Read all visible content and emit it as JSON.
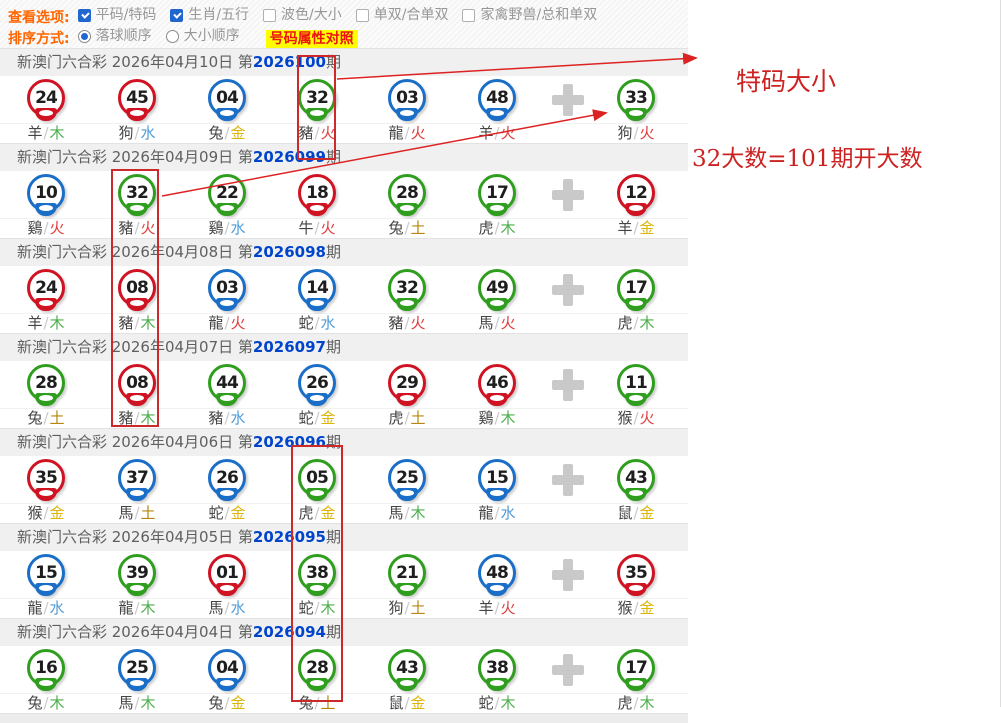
{
  "toolbar": {
    "view_label": "查看选项:",
    "view_options": [
      {
        "label": "平码/特码",
        "checked": true
      },
      {
        "label": "生肖/五行",
        "checked": true
      },
      {
        "label": "波色/大小",
        "checked": false
      },
      {
        "label": "单双/合单双",
        "checked": false
      },
      {
        "label": "家禽野兽/总和单双",
        "checked": false
      }
    ],
    "sort_label": "排序方式:",
    "sort_options": [
      {
        "label": "落球顺序",
        "selected": true
      },
      {
        "label": "大小顺序",
        "selected": false
      }
    ],
    "compare_link": "号码属性对照"
  },
  "labels": {
    "period_pre": "第",
    "period_post": "期"
  },
  "colors": {
    "balls": {
      "red": "#cf1322",
      "blue": "#1a6ec7",
      "green": "#2f9e1e"
    },
    "elements": {
      "木": "#4cae4c",
      "水": "#4f9bd8",
      "金": "#dcb50a",
      "火": "#e03c3c",
      "土": "#b8860b"
    },
    "annotation": "#cc2222",
    "period_number": "#0044cc",
    "toolbar_accent": "#ff6600",
    "compare_bg": "#ffff00",
    "compare_text": "#ee1111"
  },
  "periods": [
    {
      "name": "新澳门六合彩",
      "date": "2026年04月10日",
      "period": "2026100",
      "balls": [
        {
          "n": "24",
          "c": "red"
        },
        {
          "n": "45",
          "c": "red"
        },
        {
          "n": "04",
          "c": "blue"
        },
        {
          "n": "32",
          "c": "green"
        },
        {
          "n": "03",
          "c": "blue"
        },
        {
          "n": "48",
          "c": "blue"
        }
      ],
      "special": {
        "n": "33",
        "c": "green"
      },
      "labels": [
        {
          "a": "羊",
          "e": "木"
        },
        {
          "a": "狗",
          "e": "水"
        },
        {
          "a": "兔",
          "e": "金"
        },
        {
          "a": "豬",
          "e": "火"
        },
        {
          "a": "龍",
          "e": "火"
        },
        {
          "a": "羊",
          "e": "火"
        }
      ],
      "special_label": {
        "a": "狗",
        "e": "火"
      }
    },
    {
      "name": "新澳门六合彩",
      "date": "2026年04月09日",
      "period": "2026099",
      "balls": [
        {
          "n": "10",
          "c": "blue"
        },
        {
          "n": "32",
          "c": "green"
        },
        {
          "n": "22",
          "c": "green"
        },
        {
          "n": "18",
          "c": "red"
        },
        {
          "n": "28",
          "c": "green"
        },
        {
          "n": "17",
          "c": "green"
        }
      ],
      "special": {
        "n": "12",
        "c": "red"
      },
      "labels": [
        {
          "a": "鷄",
          "e": "火"
        },
        {
          "a": "豬",
          "e": "火"
        },
        {
          "a": "鷄",
          "e": "水"
        },
        {
          "a": "牛",
          "e": "火"
        },
        {
          "a": "兔",
          "e": "土"
        },
        {
          "a": "虎",
          "e": "木"
        }
      ],
      "special_label": {
        "a": "羊",
        "e": "金"
      }
    },
    {
      "name": "新澳门六合彩",
      "date": "2026年04月08日",
      "period": "2026098",
      "balls": [
        {
          "n": "24",
          "c": "red"
        },
        {
          "n": "08",
          "c": "red"
        },
        {
          "n": "03",
          "c": "blue"
        },
        {
          "n": "14",
          "c": "blue"
        },
        {
          "n": "32",
          "c": "green"
        },
        {
          "n": "49",
          "c": "green"
        }
      ],
      "special": {
        "n": "17",
        "c": "green"
      },
      "labels": [
        {
          "a": "羊",
          "e": "木"
        },
        {
          "a": "豬",
          "e": "木"
        },
        {
          "a": "龍",
          "e": "火"
        },
        {
          "a": "蛇",
          "e": "水"
        },
        {
          "a": "豬",
          "e": "火"
        },
        {
          "a": "馬",
          "e": "火"
        }
      ],
      "special_label": {
        "a": "虎",
        "e": "木"
      }
    },
    {
      "name": "新澳门六合彩",
      "date": "2026年04月07日",
      "period": "2026097",
      "balls": [
        {
          "n": "28",
          "c": "green"
        },
        {
          "n": "08",
          "c": "red"
        },
        {
          "n": "44",
          "c": "green"
        },
        {
          "n": "26",
          "c": "blue"
        },
        {
          "n": "29",
          "c": "red"
        },
        {
          "n": "46",
          "c": "red"
        }
      ],
      "special": {
        "n": "11",
        "c": "green"
      },
      "labels": [
        {
          "a": "兔",
          "e": "土"
        },
        {
          "a": "豬",
          "e": "木"
        },
        {
          "a": "豬",
          "e": "水"
        },
        {
          "a": "蛇",
          "e": "金"
        },
        {
          "a": "虎",
          "e": "土"
        },
        {
          "a": "鷄",
          "e": "木"
        }
      ],
      "special_label": {
        "a": "猴",
        "e": "火"
      }
    },
    {
      "name": "新澳门六合彩",
      "date": "2026年04月06日",
      "period": "2026096",
      "balls": [
        {
          "n": "35",
          "c": "red"
        },
        {
          "n": "37",
          "c": "blue"
        },
        {
          "n": "26",
          "c": "blue"
        },
        {
          "n": "05",
          "c": "green"
        },
        {
          "n": "25",
          "c": "blue"
        },
        {
          "n": "15",
          "c": "blue"
        }
      ],
      "special": {
        "n": "43",
        "c": "green"
      },
      "labels": [
        {
          "a": "猴",
          "e": "金"
        },
        {
          "a": "馬",
          "e": "土"
        },
        {
          "a": "蛇",
          "e": "金"
        },
        {
          "a": "虎",
          "e": "金"
        },
        {
          "a": "馬",
          "e": "木"
        },
        {
          "a": "龍",
          "e": "水"
        }
      ],
      "special_label": {
        "a": "鼠",
        "e": "金"
      }
    },
    {
      "name": "新澳门六合彩",
      "date": "2026年04月05日",
      "period": "2026095",
      "balls": [
        {
          "n": "15",
          "c": "blue"
        },
        {
          "n": "39",
          "c": "green"
        },
        {
          "n": "01",
          "c": "red"
        },
        {
          "n": "38",
          "c": "green"
        },
        {
          "n": "21",
          "c": "green"
        },
        {
          "n": "48",
          "c": "blue"
        }
      ],
      "special": {
        "n": "35",
        "c": "red"
      },
      "labels": [
        {
          "a": "龍",
          "e": "水"
        },
        {
          "a": "龍",
          "e": "木"
        },
        {
          "a": "馬",
          "e": "水"
        },
        {
          "a": "蛇",
          "e": "木"
        },
        {
          "a": "狗",
          "e": "土"
        },
        {
          "a": "羊",
          "e": "火"
        }
      ],
      "special_label": {
        "a": "猴",
        "e": "金"
      }
    },
    {
      "name": "新澳门六合彩",
      "date": "2026年04月04日",
      "period": "2026094",
      "balls": [
        {
          "n": "16",
          "c": "green"
        },
        {
          "n": "25",
          "c": "blue"
        },
        {
          "n": "04",
          "c": "blue"
        },
        {
          "n": "28",
          "c": "green"
        },
        {
          "n": "43",
          "c": "green"
        },
        {
          "n": "38",
          "c": "green"
        }
      ],
      "special": {
        "n": "17",
        "c": "green"
      },
      "labels": [
        {
          "a": "兔",
          "e": "木"
        },
        {
          "a": "馬",
          "e": "木"
        },
        {
          "a": "兔",
          "e": "金"
        },
        {
          "a": "兔",
          "e": "土"
        },
        {
          "a": "鼠",
          "e": "金"
        },
        {
          "a": "蛇",
          "e": "木"
        }
      ],
      "special_label": {
        "a": "虎",
        "e": "木"
      }
    }
  ],
  "annotations": {
    "note_top": "特码大小",
    "note_bottom": "32大数=101期开大数"
  }
}
